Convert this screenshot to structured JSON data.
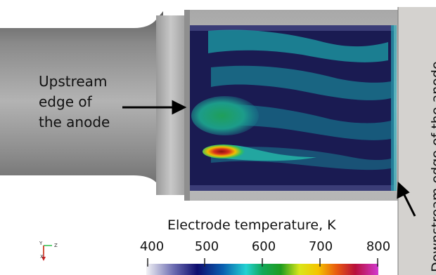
{
  "annotations": {
    "upstream_lines": [
      "Upstream",
      "edge of",
      "the anode"
    ],
    "downstream": "Downstream edge of the anode"
  },
  "colorbar": {
    "title": "Electrode temperature, K",
    "ticks": [
      "400",
      "500",
      "600",
      "700",
      "800"
    ],
    "range": [
      400,
      800
    ]
  },
  "orientation_axes": {
    "y": "Y",
    "z": "Z",
    "x": "X"
  },
  "colors": {
    "electrode_gray": "#9d9d9d",
    "cold": "#15164a",
    "cyan": "#18a7a8",
    "hot": "#d8301c"
  }
}
